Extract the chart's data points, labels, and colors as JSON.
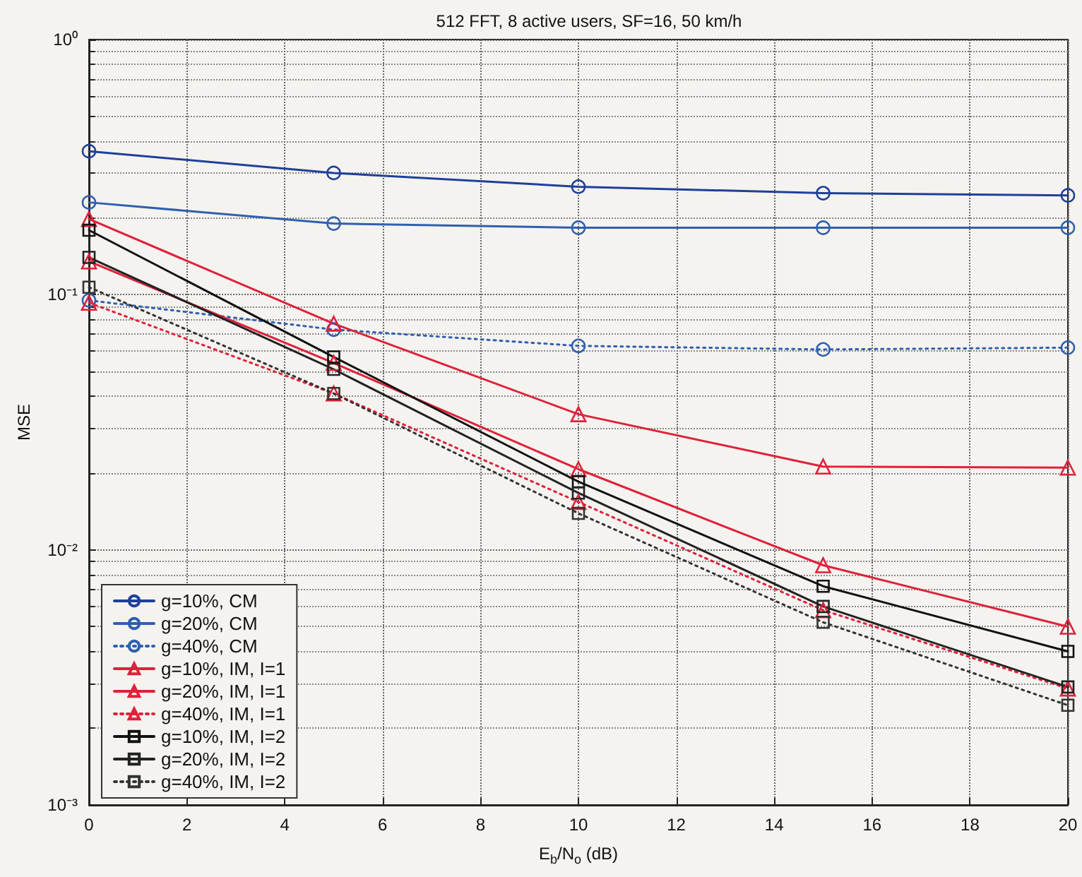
{
  "chart_data": {
    "type": "line",
    "title": "512 FFT, 8 active users, SF=16, 50 km/h",
    "xlabel": "E$_{b}$/N$_{o}$ (dB)",
    "ylabel": "MSE",
    "x": [
      0,
      5,
      10,
      15,
      20
    ],
    "xlim": [
      0,
      20
    ],
    "xticks": [
      0,
      2,
      4,
      6,
      8,
      10,
      12,
      14,
      16,
      18,
      20
    ],
    "ylim": [
      0.001,
      1
    ],
    "yticks": [
      {
        "value": 0.001,
        "label": "10⁻³"
      },
      {
        "value": 0.01,
        "label": "10⁻²"
      },
      {
        "value": 0.1,
        "label": "10⁻¹"
      },
      {
        "value": 1,
        "label": "10⁰"
      }
    ],
    "log": "y",
    "grid": true,
    "legend": "bottom left",
    "series": [
      {
        "name": "g=10%, CM",
        "color": "#1f3f9a",
        "marker": "circle",
        "line_style": "solid",
        "values": [
          0.365,
          0.3,
          0.265,
          0.25,
          0.245
        ]
      },
      {
        "name": "g=20%, CM",
        "color": "#2f5fb0",
        "marker": "circle",
        "line_style": "solid",
        "values": [
          0.23,
          0.19,
          0.183,
          0.183,
          0.183
        ]
      },
      {
        "name": "g=40%, CM",
        "color": "#2f5fb0",
        "marker": "circle",
        "line_style": "dotted",
        "values": [
          0.095,
          0.073,
          0.063,
          0.061,
          0.062
        ]
      },
      {
        "name": "g=10%, IM, I=1",
        "color": "#e0203a",
        "marker": "triangle",
        "line_style": "solid",
        "values": [
          0.198,
          0.077,
          0.034,
          0.0212,
          0.021
        ]
      },
      {
        "name": "g=20%, IM, I=1",
        "color": "#e0203a",
        "marker": "triangle",
        "line_style": "solid",
        "values": [
          0.135,
          0.054,
          0.0207,
          0.0087,
          0.005
        ]
      },
      {
        "name": "g=40%, IM, I=1",
        "color": "#e0203a",
        "marker": "triangle",
        "line_style": "dotted",
        "values": [
          0.093,
          0.041,
          0.0154,
          0.0058,
          0.00286
        ]
      },
      {
        "name": "g=10%, IM, I=2",
        "color": "#111111",
        "marker": "square",
        "line_style": "solid",
        "values": [
          0.179,
          0.057,
          0.0185,
          0.0072,
          0.004
        ]
      },
      {
        "name": "g=20%, IM, I=2",
        "color": "#222222",
        "marker": "square",
        "line_style": "solid",
        "values": [
          0.14,
          0.051,
          0.0167,
          0.006,
          0.0029
        ]
      },
      {
        "name": "g=40%, IM, I=2",
        "color": "#333333",
        "marker": "square",
        "line_style": "dotted",
        "values": [
          0.107,
          0.041,
          0.0139,
          0.0052,
          0.00246
        ]
      }
    ]
  }
}
